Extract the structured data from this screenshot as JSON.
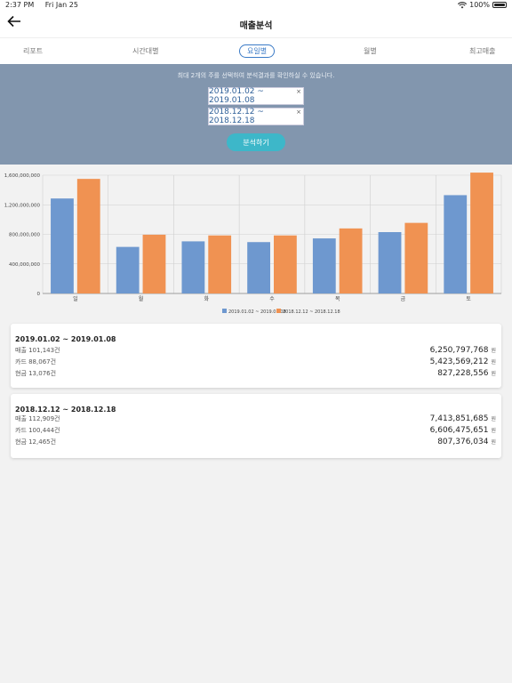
{
  "status_bar": {
    "time": "2:37 PM",
    "date": "Fri Jan 25",
    "battery": "100%"
  },
  "nav": {
    "title": "매출분석"
  },
  "tabs": [
    {
      "label": "리포트"
    },
    {
      "label": "시간대별"
    },
    {
      "label": "요일별",
      "active": true
    },
    {
      "label": "월별"
    },
    {
      "label": "최고매출"
    }
  ],
  "selector": {
    "hint": "최대 2개의 주를 선택하여 분석결과를 확인하실 수 있습니다.",
    "periods": [
      "2019.01.02 ~ 2019.01.08",
      "2018.12.12 ~ 2018.12.18"
    ],
    "close_symbol": "×",
    "analyze_label": "분석하기"
  },
  "chart_data": {
    "type": "bar",
    "categories": [
      "일",
      "월",
      "화",
      "수",
      "목",
      "금",
      "토"
    ],
    "series": [
      {
        "name": "2019.01.02 ~ 2019.01.08",
        "color": "#6e98cf",
        "values": [
          1285000000,
          630000000,
          705000000,
          695000000,
          745000000,
          830000000,
          1330000000
        ]
      },
      {
        "name": "2018.12.12 ~ 2018.12.18",
        "color": "#f09252",
        "values": [
          1550000000,
          795000000,
          785000000,
          785000000,
          880000000,
          955000000,
          1635000000
        ]
      }
    ],
    "yticks": [
      "0",
      "400,000,000",
      "800,000,000",
      "1,200,000,000",
      "1,600,000,000"
    ],
    "ytick_values": [
      0,
      400000000,
      800000000,
      1200000000,
      1600000000
    ],
    "ylim": [
      0,
      1600000000
    ],
    "legend_position": "bottom"
  },
  "cards": [
    {
      "title": "2019.01.02 ~ 2019.01.08",
      "rows": [
        {
          "label": "매출 101,143건",
          "value": "6,250,797,768",
          "unit": "원"
        },
        {
          "label": "카드 88,067건",
          "value": "5,423,569,212",
          "unit": "원"
        },
        {
          "label": "현금 13,076건",
          "value": "827,228,556",
          "unit": "원"
        }
      ]
    },
    {
      "title": "2018.12.12 ~ 2018.12.18",
      "rows": [
        {
          "label": "매출 112,909건",
          "value": "7,413,851,685",
          "unit": "원"
        },
        {
          "label": "카드 100,444건",
          "value": "6,606,475,651",
          "unit": "원"
        },
        {
          "label": "현금 12,465건",
          "value": "807,376,034",
          "unit": "원"
        }
      ]
    }
  ]
}
